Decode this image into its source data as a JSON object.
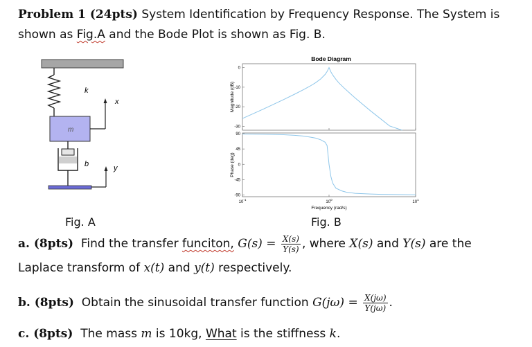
{
  "problem": {
    "number_label": "Problem 1 (24pts)",
    "line1_rest": "System Identification by Frequency Response. The System is",
    "line2_pre": "shown as ",
    "line2_link": "Fig.A",
    "line2_post": " and the Bode Plot is shown as Fig. B."
  },
  "figure_a": {
    "caption": "Fig. A",
    "spring_label": "k",
    "mass_label": "m",
    "damper_label": "b",
    "x_label": "x",
    "y_label": "y",
    "colors": {
      "ground": "#a6a6a6",
      "mass": "#b3b3f0",
      "base": "#6b6bd6"
    }
  },
  "figure_b": {
    "caption": "Fig. B",
    "chart_data": {
      "type": "line",
      "title": "Bode Diagram",
      "xlabel": "Frequency (rad/s)",
      "xscale": "log",
      "xlim": [
        0.1,
        10
      ],
      "x_ticks": [
        {
          "value": 0.1,
          "base": "10",
          "exp": "-1"
        },
        {
          "value": 1,
          "base": "10",
          "exp": "0"
        },
        {
          "value": 10,
          "base": "10",
          "exp": "1"
        }
      ],
      "subplots": [
        {
          "name": "magnitude",
          "ylabel": "Magnitude (dB)",
          "ylim": [
            -32,
            2
          ],
          "yticks": [
            "0",
            "-10",
            "-20",
            "-30"
          ],
          "ytick_values": [
            0,
            -10,
            -20,
            -30
          ],
          "series_color": "#8ec6ea",
          "x": [
            0.1,
            0.15,
            0.2,
            0.3,
            0.4,
            0.5,
            0.6,
            0.7,
            0.8,
            0.9,
            0.95,
            1.0,
            1.05,
            1.1,
            1.2,
            1.3,
            1.5,
            2,
            3,
            4,
            5,
            7,
            10
          ],
          "y": [
            -26,
            -22.5,
            -20,
            -16.3,
            -13.6,
            -11.4,
            -9.5,
            -7.7,
            -5.8,
            -3.5,
            -2.0,
            0,
            -2.1,
            -3.7,
            -6.0,
            -7.8,
            -10.5,
            -15.5,
            -22,
            -26.4,
            -29.8,
            -34.6,
            -40
          ]
        },
        {
          "name": "phase",
          "ylabel": "Phase (deg)",
          "ylim": [
            -95,
            92
          ],
          "yticks": [
            "90",
            "45",
            "0",
            "-45",
            "-90"
          ],
          "ytick_values": [
            90,
            45,
            0,
            -45,
            -90
          ],
          "series_color": "#8ec6ea",
          "x": [
            0.1,
            0.2,
            0.3,
            0.4,
            0.5,
            0.6,
            0.7,
            0.8,
            0.9,
            0.95,
            1.0,
            1.05,
            1.1,
            1.2,
            1.4,
            1.6,
            2,
            3,
            4,
            5,
            7,
            10
          ],
          "y": [
            89,
            88,
            87,
            85,
            83,
            80,
            77,
            72,
            65,
            55,
            0,
            -35,
            -55,
            -70,
            -78,
            -82,
            -85,
            -87,
            -88,
            -88.5,
            -89,
            -89.5
          ]
        }
      ]
    }
  },
  "part_a": {
    "label": "a. (8pts)",
    "text1": "Find the transfer ",
    "misspelled": "funciton,",
    "lhs": "G(s) =",
    "num": "X(s)",
    "den": "Y(s)",
    "text2": ", where ",
    "xs": "X(s)",
    "and": " and ",
    "ys": "Y(s)",
    "text3": " are the",
    "line2_pre": "Laplace transform of ",
    "xt": "x(t)",
    "line2_mid": " and ",
    "yt": "y(t)",
    "line2_post": " respectively."
  },
  "part_b": {
    "label": "b. (8pts)",
    "text": "Obtain the sinusoidal transfer function ",
    "lhs": "G(jω) =",
    "num": "X(jω)",
    "den": "Y(jω)",
    "tail": "."
  },
  "part_c": {
    "label": "c. (8pts)",
    "text1": "The mass ",
    "m": "m",
    "text2": " is 10kg, ",
    "what": "What",
    "text3": " is the stiffness ",
    "k": "k",
    "tail": "."
  }
}
